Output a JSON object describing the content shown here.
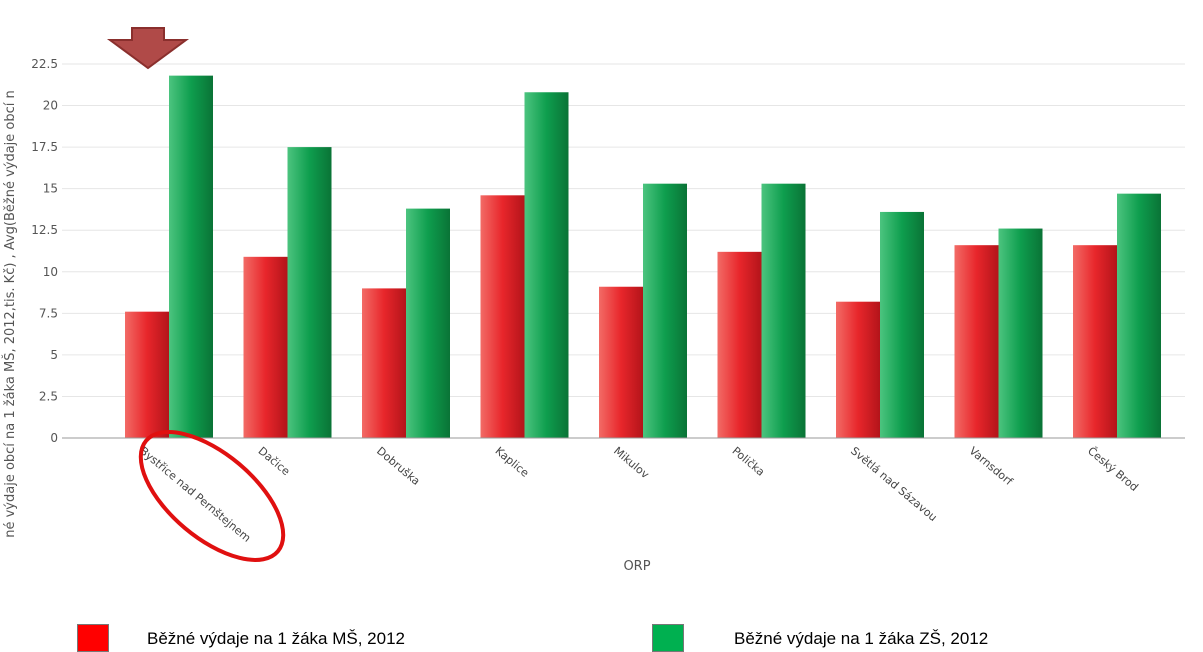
{
  "chart_data": {
    "type": "bar",
    "categories": [
      "Bystřice nad Pernštejnem",
      "Dačice",
      "Dobruška",
      "Kaplice",
      "Mikulov",
      "Polička",
      "Světlá nad Sázavou",
      "Varnsdorf",
      "Český Brod"
    ],
    "series": [
      {
        "name": "Běžné výdaje na 1 žáka MŠ, 2012",
        "color": "#e8262b",
        "values": [
          7.6,
          10.9,
          9.0,
          14.6,
          9.1,
          11.2,
          8.2,
          11.6,
          11.6
        ]
      },
      {
        "name": "Běžné výdaje na 1 žáka ZŠ, 2012",
        "color": "#0e9e4e",
        "values": [
          21.8,
          17.5,
          13.8,
          20.8,
          15.3,
          15.3,
          13.6,
          12.6,
          14.7
        ]
      }
    ],
    "xlabel": "ORP",
    "ylabel": "né výdaje obcí na 1 žáka MŠ, 2012,tis. Kč) , Avg(Běžné výdaje obcí n",
    "ylim": [
      0,
      22.5
    ],
    "yticks": [
      "0",
      "2.5",
      "5",
      "7.5",
      "10",
      "12.5",
      "15",
      "17.5",
      "20",
      "22.5"
    ],
    "grid": true,
    "annotations": {
      "arrow_color": "#b04a48",
      "ellipse_color": "#e01010"
    }
  }
}
